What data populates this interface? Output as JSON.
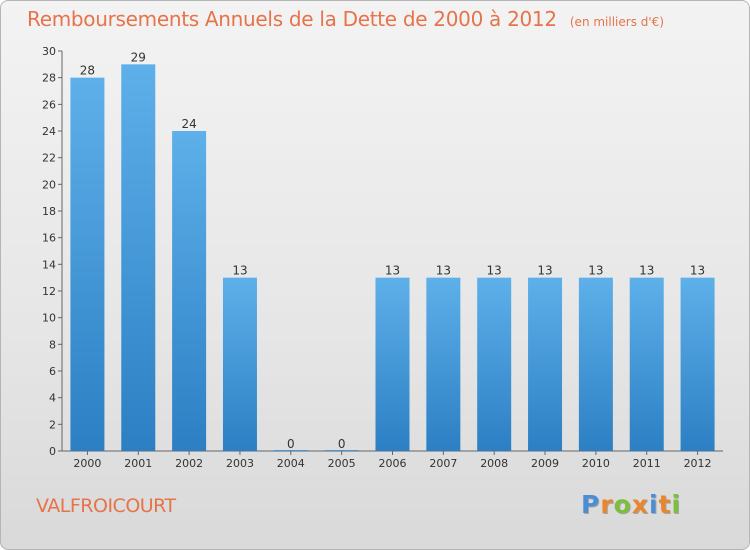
{
  "chart_data": {
    "type": "bar",
    "title": "Remboursements Annuels de la Dette de 2000 à 2012",
    "unit": "(en milliers d'€)",
    "categories": [
      "2000",
      "2001",
      "2002",
      "2003",
      "2004",
      "2005",
      "2006",
      "2007",
      "2008",
      "2009",
      "2010",
      "2011",
      "2012"
    ],
    "values": [
      28,
      29,
      24,
      13,
      0,
      0,
      13,
      13,
      13,
      13,
      13,
      13,
      13
    ],
    "value_labels": [
      "28",
      "29",
      "24",
      "13",
      "0",
      "0",
      "13",
      "13",
      "13",
      "13",
      "13",
      "13",
      "13"
    ],
    "ylim": [
      0,
      30
    ],
    "yticks": [
      0,
      2,
      4,
      6,
      8,
      10,
      12,
      14,
      16,
      18,
      20,
      22,
      24,
      26,
      28,
      30
    ],
    "xlabel": "",
    "ylabel": "",
    "grid": false,
    "colors": {
      "bar_light": "#5eb0ea",
      "bar_dark": "#2c7fc3",
      "label": "#333333",
      "accent": "#e6734a"
    }
  },
  "footer": {
    "commune": "VALFROICOURT",
    "logo_letters": [
      {
        "ch": "P",
        "color": "#4a8fd6"
      },
      {
        "ch": "r",
        "color": "#e8862e"
      },
      {
        "ch": "o",
        "color": "#7bbf3a"
      },
      {
        "ch": "x",
        "color": "#e8862e"
      },
      {
        "ch": "i",
        "color": "#4a8fd6"
      },
      {
        "ch": "t",
        "color": "#e8862e"
      },
      {
        "ch": "i",
        "color": "#7bbf3a"
      }
    ]
  }
}
